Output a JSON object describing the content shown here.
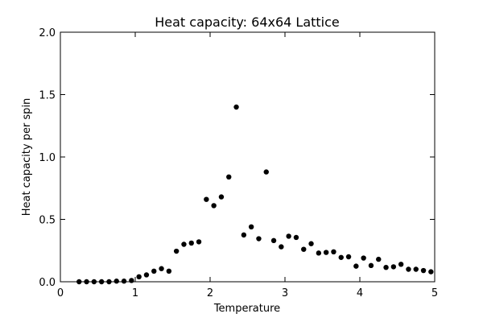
{
  "chart_data": {
    "type": "scatter",
    "title": "Heat capacity: 64x64 Lattice",
    "xlabel": "Temperature",
    "ylabel": "Heat capacity per spin",
    "xlim": [
      0,
      5
    ],
    "ylim": [
      0,
      2.0
    ],
    "xticks": [
      0,
      1,
      2,
      3,
      4,
      5
    ],
    "xtick_labels": [
      "0",
      "1",
      "2",
      "3",
      "4",
      "5"
    ],
    "yticks": [
      0,
      0.5,
      1.0,
      1.5,
      2.0
    ],
    "ytick_labels": [
      "0.0",
      "0.5",
      "1.0",
      "1.5",
      "2.0"
    ],
    "grid": false,
    "marker_color": "#000000",
    "series": [
      {
        "x": [
          0.25,
          0.35,
          0.45,
          0.55,
          0.65,
          0.75,
          0.85,
          0.95,
          1.05,
          1.15,
          1.25,
          1.35,
          1.45,
          1.55,
          1.65,
          1.75,
          1.85,
          1.95,
          2.05,
          2.15,
          2.25,
          2.35,
          2.45,
          2.55,
          2.65,
          2.75,
          2.85,
          2.95,
          3.05,
          3.15,
          3.25,
          3.35,
          3.45,
          3.55,
          3.65,
          3.75,
          3.85,
          3.95,
          4.05,
          4.15,
          4.25,
          4.35,
          4.45,
          4.55,
          4.65,
          4.75,
          4.85,
          4.95
        ],
        "y": [
          0.0,
          0.0,
          0.0,
          0.0,
          0.0,
          0.005,
          0.005,
          0.01,
          0.04,
          0.055,
          0.085,
          0.105,
          0.085,
          0.245,
          0.3,
          0.31,
          0.32,
          0.66,
          0.61,
          0.68,
          0.84,
          1.4,
          0.375,
          0.44,
          0.345,
          0.88,
          0.33,
          0.28,
          0.365,
          0.355,
          0.26,
          0.305,
          0.23,
          0.235,
          0.24,
          0.195,
          0.2,
          0.125,
          0.19,
          0.13,
          0.18,
          0.115,
          0.12,
          0.14,
          0.1,
          0.1,
          0.09,
          0.08
        ]
      }
    ]
  }
}
